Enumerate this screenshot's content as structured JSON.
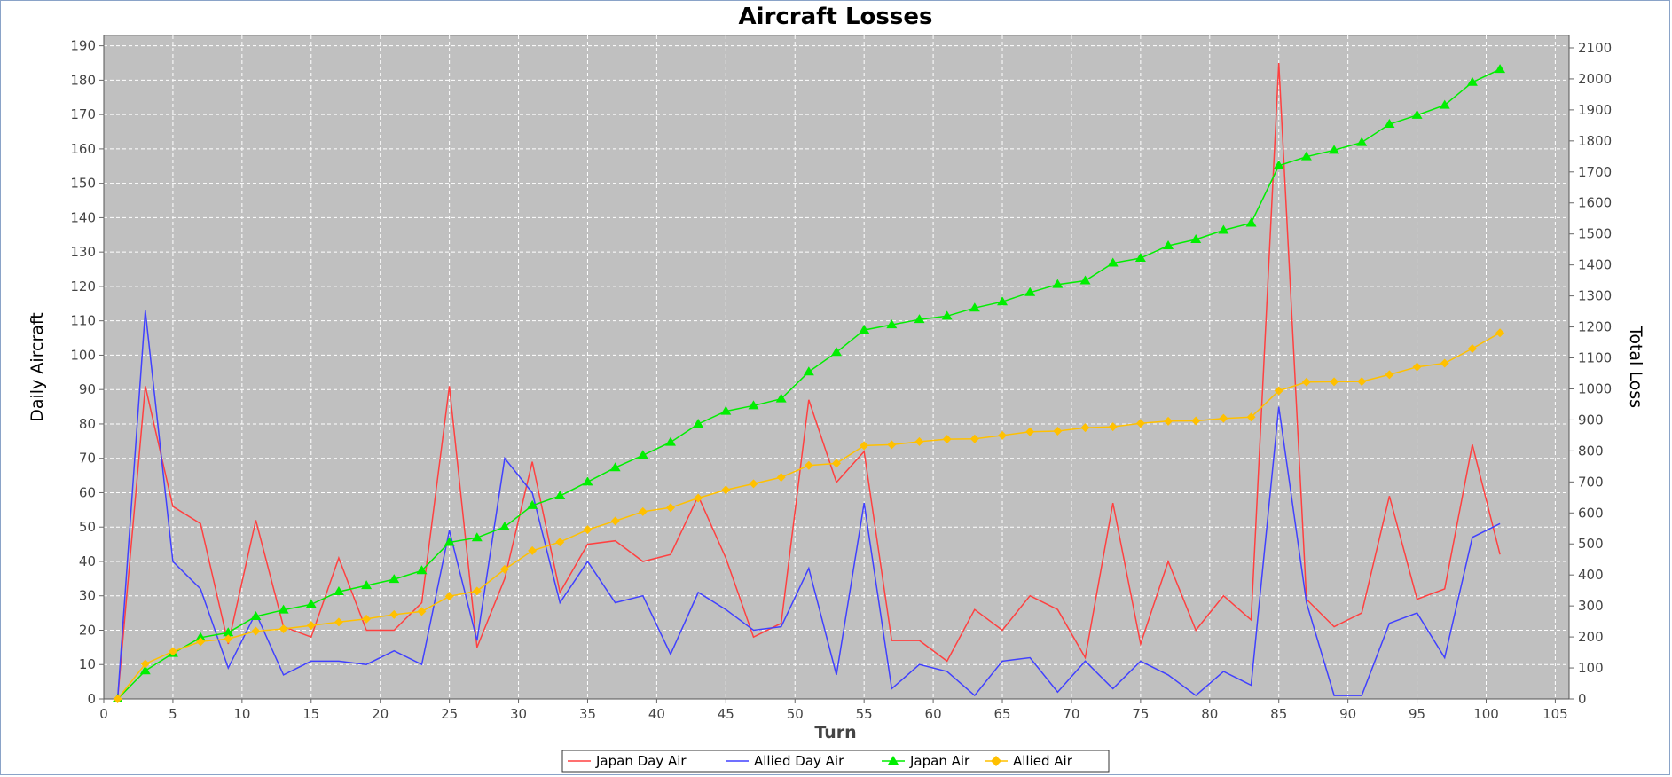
{
  "chart_data": {
    "type": "line",
    "title": "Aircraft Losses",
    "xlabel": "Turn",
    "ylabel": "Daily Aircraft",
    "y2label": "Total Loss",
    "xlim": [
      0,
      106
    ],
    "ylim": [
      0,
      193
    ],
    "y2lim": [
      0,
      2140
    ],
    "x_ticks": [
      0,
      5,
      10,
      15,
      20,
      25,
      30,
      35,
      40,
      45,
      50,
      55,
      60,
      65,
      70,
      75,
      80,
      85,
      90,
      95,
      100,
      105
    ],
    "y_ticks": [
      0,
      10,
      20,
      30,
      40,
      50,
      60,
      70,
      80,
      90,
      100,
      110,
      120,
      130,
      140,
      150,
      160,
      170,
      180,
      190
    ],
    "y2_ticks": [
      0,
      100,
      200,
      300,
      400,
      500,
      600,
      700,
      800,
      900,
      1000,
      1100,
      1200,
      1300,
      1400,
      1500,
      1600,
      1700,
      1800,
      1900,
      2000,
      2100
    ],
    "grid": true,
    "legend_position": "bottom",
    "colors": {
      "plot_background": "#c0c0c0",
      "gridline": "#ffffff",
      "japan_day": "#ff4040",
      "allied_day": "#4040ff",
      "japan_total": "#00ee00",
      "allied_total": "#ffc000"
    },
    "x": [
      1,
      3,
      5,
      7,
      9,
      11,
      13,
      15,
      17,
      19,
      21,
      23,
      25,
      27,
      29,
      31,
      33,
      35,
      37,
      39,
      41,
      43,
      45,
      47,
      49,
      51,
      53,
      55,
      57,
      59,
      61,
      63,
      65,
      67,
      69,
      71,
      73,
      75,
      77,
      79,
      81,
      83,
      85,
      87,
      89,
      91,
      93,
      95,
      97,
      99,
      101
    ],
    "series": [
      {
        "name": "Japan Day Air",
        "axis": "left",
        "marker": "none",
        "color": "#ff4040",
        "values": [
          0,
          91,
          56,
          51,
          16,
          52,
          21,
          18,
          41,
          20,
          20,
          28,
          91,
          15,
          35,
          69,
          31,
          45,
          46,
          40,
          42,
          59,
          41,
          18,
          22,
          87,
          63,
          72,
          17,
          17,
          11,
          26,
          20,
          30,
          26,
          12,
          57,
          16,
          40,
          20,
          30,
          23,
          185,
          29,
          21,
          25,
          59,
          29,
          32,
          74,
          42
        ]
      },
      {
        "name": "Allied Day Air",
        "axis": "left",
        "marker": "none",
        "color": "#4040ff",
        "values": [
          0,
          113,
          40,
          32,
          9,
          25,
          7,
          11,
          11,
          10,
          14,
          10,
          49,
          17,
          70,
          60,
          28,
          40,
          28,
          30,
          13,
          31,
          26,
          20,
          21,
          38,
          7,
          57,
          3,
          10,
          8,
          1,
          11,
          12,
          2,
          11,
          3,
          11,
          7,
          1,
          8,
          4,
          85,
          28,
          1,
          1,
          22,
          25,
          12,
          47,
          51
        ]
      },
      {
        "name": "Japan Air",
        "axis": "right",
        "marker": "triangle",
        "color": "#00ee00",
        "values": [
          0,
          91,
          147,
          198,
          214,
          266,
          287,
          305,
          346,
          366,
          386,
          414,
          505,
          520,
          555,
          624,
          655,
          700,
          746,
          786,
          828,
          887,
          928,
          946,
          968,
          1055,
          1118,
          1190,
          1207,
          1224,
          1235,
          1261,
          1281,
          1311,
          1337,
          1349,
          1406,
          1422,
          1462,
          1482,
          1512,
          1535,
          1720,
          1749,
          1770,
          1795,
          1854,
          1883,
          1915,
          1989,
          2031
        ]
      },
      {
        "name": "Allied Air",
        "axis": "right",
        "marker": "diamond",
        "color": "#ffc000",
        "values": [
          0,
          113,
          153,
          185,
          194,
          219,
          226,
          237,
          248,
          258,
          272,
          282,
          331,
          348,
          418,
          478,
          506,
          546,
          574,
          604,
          617,
          648,
          674,
          694,
          715,
          753,
          760,
          817,
          820,
          830,
          838,
          839,
          850,
          862,
          864,
          875,
          878,
          889,
          896,
          897,
          905,
          909,
          994,
          1022,
          1023,
          1024,
          1046,
          1071,
          1083,
          1130,
          1181
        ]
      }
    ]
  }
}
